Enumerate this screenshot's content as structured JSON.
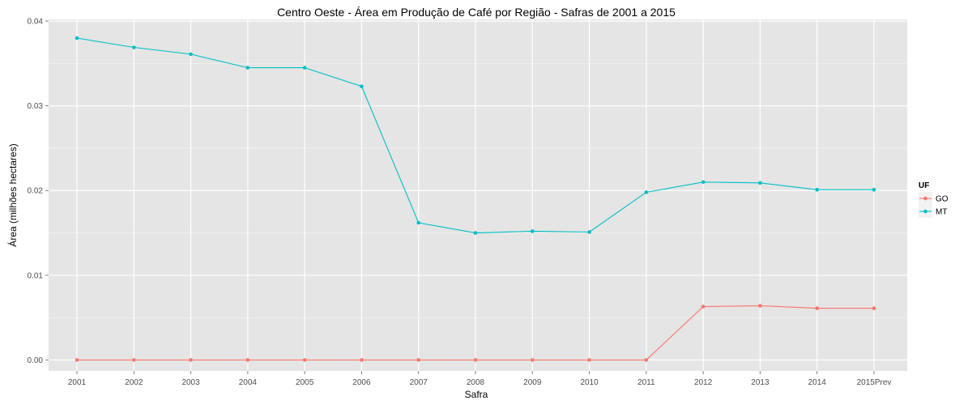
{
  "chart_data": {
    "type": "line",
    "title": "Centro Oeste  - Área em Produção de Café por Região - Safras de 2001 a 2015",
    "xlabel": "Safra",
    "ylabel": "Área (milhões hectares)",
    "categories": [
      "2001",
      "2002",
      "2003",
      "2004",
      "2005",
      "2006",
      "2007",
      "2008",
      "2009",
      "2010",
      "2011",
      "2012",
      "2013",
      "2014",
      "2015Prev"
    ],
    "ylim": [
      -0.0013,
      0.0402
    ],
    "yticks": [
      0.0,
      0.01,
      0.02,
      0.03,
      0.04
    ],
    "ytick_labels": [
      "0.00",
      "0.01",
      "0.02",
      "0.03",
      "0.04"
    ],
    "grid": true,
    "legend_title": "UF",
    "legend_position": "right",
    "series": [
      {
        "name": "GO",
        "color": "#F8766D",
        "values": [
          0.0,
          0.0,
          0.0,
          0.0,
          0.0,
          0.0,
          0.0,
          0.0,
          0.0,
          0.0,
          0.0,
          0.0063,
          0.0064,
          0.0061,
          0.0061
        ]
      },
      {
        "name": "MT",
        "color": "#00BFC4",
        "values": [
          0.038,
          0.0369,
          0.0361,
          0.0345,
          0.0345,
          0.0323,
          0.0162,
          0.015,
          0.0152,
          0.0151,
          0.0198,
          0.021,
          0.0209,
          0.0201,
          0.0201
        ]
      }
    ]
  }
}
